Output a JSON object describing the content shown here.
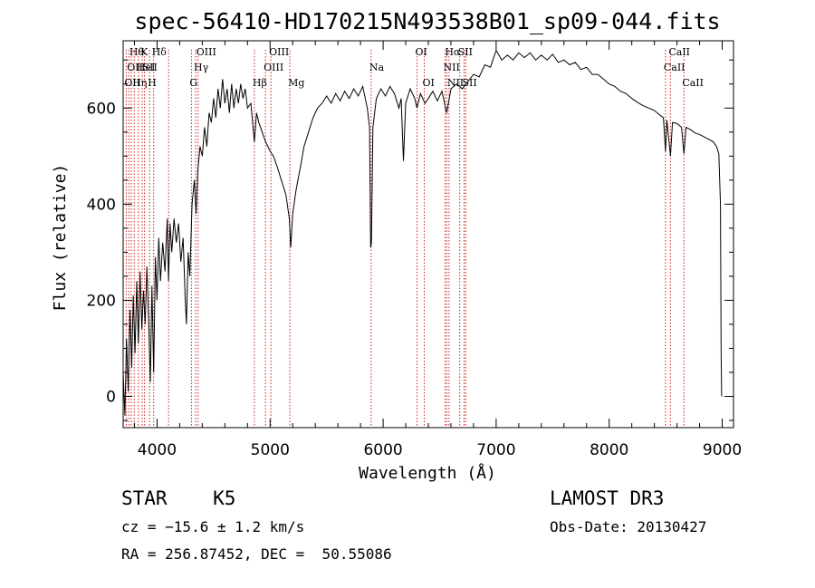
{
  "title": "spec-56410-HD170215N493538B01_sp09-044.fits",
  "info": {
    "class_line": "STAR    K5",
    "survey": "LAMOST DR3",
    "cz": "cz = −15.6 ± 1.2 km/s",
    "obs_date": "Obs-Date: 20130427",
    "radec": "RA = 256.87452, DEC =  50.55086"
  },
  "chart_data": {
    "type": "line",
    "title": "spec-56410-HD170215N493538B01_sp09-044.fits",
    "xlabel": "Wavelength (Å)",
    "ylabel": "Flux (relative)",
    "xlim": [
      3700,
      9100
    ],
    "ylim": [
      -65,
      740
    ],
    "xticks": [
      4000,
      5000,
      6000,
      7000,
      8000,
      9000
    ],
    "yticks": [
      0,
      200,
      400,
      600
    ],
    "grid": false,
    "line_color": "#000000",
    "marker_color": "#cc2222",
    "series": [
      {
        "values": [
          [
            3700,
            50
          ],
          [
            3715,
            -40
          ],
          [
            3730,
            120
          ],
          [
            3745,
            10
          ],
          [
            3760,
            180
          ],
          [
            3775,
            60
          ],
          [
            3790,
            210
          ],
          [
            3805,
            90
          ],
          [
            3820,
            240
          ],
          [
            3835,
            110
          ],
          [
            3850,
            260
          ],
          [
            3865,
            140
          ],
          [
            3880,
            220
          ],
          [
            3895,
            150
          ],
          [
            3910,
            270
          ],
          [
            3925,
            160
          ],
          [
            3940,
            30
          ],
          [
            3955,
            230
          ],
          [
            3970,
            50
          ],
          [
            3985,
            290
          ],
          [
            4000,
            200
          ],
          [
            4015,
            330
          ],
          [
            4030,
            240
          ],
          [
            4050,
            320
          ],
          [
            4070,
            260
          ],
          [
            4090,
            370
          ],
          [
            4101,
            240
          ],
          [
            4115,
            360
          ],
          [
            4130,
            300
          ],
          [
            4150,
            370
          ],
          [
            4170,
            320
          ],
          [
            4190,
            360
          ],
          [
            4210,
            280
          ],
          [
            4230,
            330
          ],
          [
            4250,
            200
          ],
          [
            4260,
            150
          ],
          [
            4275,
            300
          ],
          [
            4290,
            250
          ],
          [
            4310,
            400
          ],
          [
            4330,
            450
          ],
          [
            4345,
            380
          ],
          [
            4360,
            470
          ],
          [
            4380,
            520
          ],
          [
            4400,
            500
          ],
          [
            4420,
            560
          ],
          [
            4440,
            520
          ],
          [
            4460,
            590
          ],
          [
            4480,
            570
          ],
          [
            4500,
            620
          ],
          [
            4520,
            580
          ],
          [
            4540,
            640
          ],
          [
            4560,
            600
          ],
          [
            4580,
            660
          ],
          [
            4600,
            610
          ],
          [
            4620,
            640
          ],
          [
            4640,
            590
          ],
          [
            4660,
            650
          ],
          [
            4680,
            600
          ],
          [
            4700,
            640
          ],
          [
            4720,
            610
          ],
          [
            4740,
            650
          ],
          [
            4760,
            620
          ],
          [
            4780,
            640
          ],
          [
            4800,
            600
          ],
          [
            4830,
            610
          ],
          [
            4861,
            530
          ],
          [
            4880,
            590
          ],
          [
            4900,
            570
          ],
          [
            4930,
            550
          ],
          [
            4960,
            530
          ],
          [
            5000,
            510
          ],
          [
            5030,
            500
          ],
          [
            5060,
            480
          ],
          [
            5100,
            450
          ],
          [
            5140,
            420
          ],
          [
            5170,
            370
          ],
          [
            5183,
            310
          ],
          [
            5200,
            380
          ],
          [
            5230,
            430
          ],
          [
            5270,
            480
          ],
          [
            5300,
            520
          ],
          [
            5340,
            550
          ],
          [
            5380,
            580
          ],
          [
            5420,
            600
          ],
          [
            5460,
            610
          ],
          [
            5500,
            625
          ],
          [
            5540,
            610
          ],
          [
            5580,
            630
          ],
          [
            5620,
            615
          ],
          [
            5660,
            635
          ],
          [
            5700,
            620
          ],
          [
            5740,
            640
          ],
          [
            5780,
            625
          ],
          [
            5820,
            645
          ],
          [
            5860,
            600
          ],
          [
            5880,
            560
          ],
          [
            5890,
            310
          ],
          [
            5897,
            320
          ],
          [
            5910,
            560
          ],
          [
            5940,
            620
          ],
          [
            5980,
            640
          ],
          [
            6020,
            625
          ],
          [
            6060,
            645
          ],
          [
            6100,
            630
          ],
          [
            6140,
            600
          ],
          [
            6160,
            620
          ],
          [
            6180,
            490
          ],
          [
            6200,
            610
          ],
          [
            6240,
            640
          ],
          [
            6280,
            620
          ],
          [
            6300,
            600
          ],
          [
            6330,
            630
          ],
          [
            6370,
            610
          ],
          [
            6400,
            620
          ],
          [
            6440,
            635
          ],
          [
            6480,
            615
          ],
          [
            6520,
            635
          ],
          [
            6563,
            590
          ],
          [
            6600,
            640
          ],
          [
            6650,
            650
          ],
          [
            6700,
            640
          ],
          [
            6750,
            655
          ],
          [
            6800,
            670
          ],
          [
            6850,
            665
          ],
          [
            6900,
            690
          ],
          [
            6950,
            685
          ],
          [
            7000,
            720
          ],
          [
            7050,
            700
          ],
          [
            7100,
            710
          ],
          [
            7150,
            700
          ],
          [
            7200,
            715
          ],
          [
            7250,
            705
          ],
          [
            7300,
            715
          ],
          [
            7350,
            700
          ],
          [
            7400,
            710
          ],
          [
            7450,
            700
          ],
          [
            7500,
            712
          ],
          [
            7550,
            695
          ],
          [
            7600,
            700
          ],
          [
            7650,
            690
          ],
          [
            7700,
            695
          ],
          [
            7750,
            680
          ],
          [
            7800,
            685
          ],
          [
            7850,
            670
          ],
          [
            7900,
            670
          ],
          [
            7950,
            660
          ],
          [
            8000,
            650
          ],
          [
            8050,
            645
          ],
          [
            8100,
            635
          ],
          [
            8150,
            630
          ],
          [
            8200,
            620
          ],
          [
            8250,
            612
          ],
          [
            8300,
            605
          ],
          [
            8350,
            600
          ],
          [
            8400,
            595
          ],
          [
            8450,
            585
          ],
          [
            8480,
            580
          ],
          [
            8498,
            510
          ],
          [
            8510,
            575
          ],
          [
            8542,
            500
          ],
          [
            8560,
            570
          ],
          [
            8600,
            568
          ],
          [
            8640,
            560
          ],
          [
            8662,
            505
          ],
          [
            8680,
            560
          ],
          [
            8720,
            555
          ],
          [
            8760,
            548
          ],
          [
            8800,
            545
          ],
          [
            8840,
            540
          ],
          [
            8880,
            535
          ],
          [
            8920,
            530
          ],
          [
            8950,
            520
          ],
          [
            8970,
            505
          ],
          [
            8985,
            400
          ],
          [
            8990,
            100
          ],
          [
            8995,
            0
          ]
        ]
      }
    ],
    "lines": [
      {
        "wave": 3727,
        "label": "OII",
        "row": 3
      },
      {
        "wave": 3750,
        "label": "OII",
        "row": 2
      },
      {
        "wave": 3771,
        "label": "Hθ",
        "row": 1
      },
      {
        "wave": 3798,
        "label": "Hη",
        "row": 3
      },
      {
        "wave": 3835,
        "label": "HeI",
        "row": 2
      },
      {
        "wave": 3869,
        "label": "K",
        "row": 1
      },
      {
        "wave": 3889,
        "label": "SII",
        "row": 2
      },
      {
        "wave": 3934,
        "label": "H",
        "row": 3
      },
      {
        "wave": 3970,
        "label": "Hδ",
        "row": 1
      },
      {
        "wave": 4102,
        "label": "",
        "row": 0
      },
      {
        "wave": 4304,
        "label": "G",
        "row": 3
      },
      {
        "wave": 4341,
        "label": "Hγ",
        "row": 2
      },
      {
        "wave": 4363,
        "label": "OIII",
        "row": 1
      },
      {
        "wave": 4861,
        "label": "Hβ",
        "row": 3
      },
      {
        "wave": 4959,
        "label": "OIII",
        "row": 2
      },
      {
        "wave": 5007,
        "label": "OIII",
        "row": 1
      },
      {
        "wave": 5175,
        "label": "Mg",
        "row": 3
      },
      {
        "wave": 5894,
        "label": "Na",
        "row": 2
      },
      {
        "wave": 6300,
        "label": "OI",
        "row": 1
      },
      {
        "wave": 6364,
        "label": "OI",
        "row": 3
      },
      {
        "wave": 6548,
        "label": "NII",
        "row": 2
      },
      {
        "wave": 6563,
        "label": "Hα",
        "row": 1
      },
      {
        "wave": 6583,
        "label": "NII",
        "row": 3
      },
      {
        "wave": 6678,
        "label": "SII",
        "row": 1
      },
      {
        "wave": 6716,
        "label": "SII",
        "row": 3
      },
      {
        "wave": 6731,
        "label": "",
        "row": 0
      },
      {
        "wave": 8498,
        "label": "CaII",
        "row": 2
      },
      {
        "wave": 8542,
        "label": "CaII",
        "row": 1
      },
      {
        "wave": 8662,
        "label": "CaII",
        "row": 3
      }
    ]
  }
}
